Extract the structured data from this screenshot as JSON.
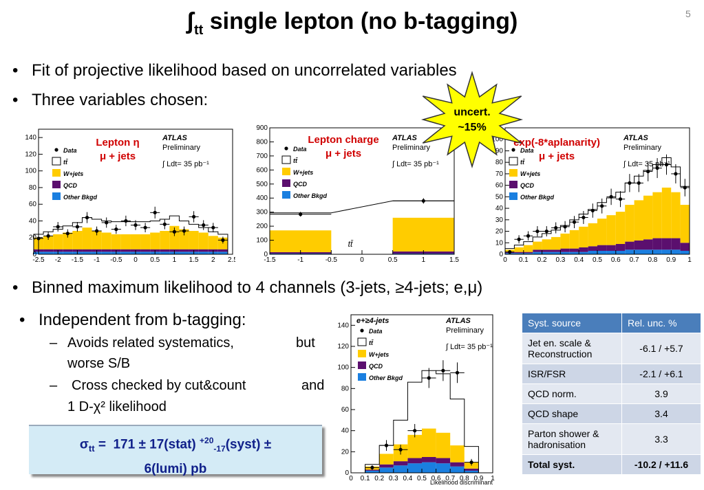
{
  "title": {
    "glyph": "ʃ",
    "sub": "tt",
    "text": "single lepton (no b-tagging)"
  },
  "page_number": "5",
  "bullets": [
    "Fit of projective likelihood based on uncorrelated variables",
    "Three variables chosen:",
    "Binned maximum likelihood to 4 channels (3-jets, ≥4-jets; e,μ)",
    "Independent from b-tagging:"
  ],
  "sub_bullets": [
    {
      "a": "Avoids related systematics,",
      "b": "but",
      "c": "worse S/B"
    },
    {
      "a": "Cross checked by cut&count",
      "b": "and",
      "c": "1 D-χ² likelihood"
    }
  ],
  "starburst": {
    "line1": "uncert.",
    "line2": "~15%",
    "color": "#ffff00"
  },
  "result": {
    "line1": "σtt =  171 ± 17(stat) +20-17(syst) ±",
    "line2": "6(lumi) pb"
  },
  "legend": {
    "data": "Data",
    "tt": "tt̄",
    "wjets": "W+jets",
    "qcd": "QCD",
    "other": "Other Bkgd"
  },
  "atlas": {
    "name": "ATLAS",
    "prelim": "Preliminary",
    "lumi": "∫ Ldt= 35 pb⁻¹"
  },
  "colors": {
    "tt": "#ffffff",
    "wjets": "#ffcc00",
    "qcd": "#5b0f6e",
    "other": "#1a7fe0",
    "title": "#10208a",
    "red": "#d00000"
  },
  "plots": {
    "eta": {
      "label1": "Lepton η",
      "label2": "μ + jets"
    },
    "charge": {
      "label1": "Lepton charge",
      "label2": "μ + jets",
      "inner": "tt̄"
    },
    "aplan": {
      "label1": "exp(-8*aplanarity)",
      "label2": "μ + jets"
    },
    "lhd": {
      "channel": "e+≥4-jets",
      "xlabel": "Likelihood discriminant"
    }
  },
  "table": {
    "headers": [
      "Syst. source",
      "Rel. unc. %"
    ],
    "rows": [
      [
        "Jet en. scale & Reconstruction",
        "-6.1 / +5.7"
      ],
      [
        "ISR/FSR",
        "-2.1 / +6.1"
      ],
      [
        "QCD norm.",
        "3.9"
      ],
      [
        "QCD shape",
        "3.4"
      ],
      [
        "Parton shower & hadronisation",
        "3.3"
      ],
      [
        "Total syst.",
        "-10.2 / +11.6"
      ]
    ]
  },
  "chart_data": [
    {
      "type": "bar",
      "title": "",
      "xlabel": "",
      "ylabel": "",
      "x_ticks": [
        "-2.5",
        "-2",
        "-1.5",
        "-1",
        "-0.5",
        "0",
        "0.5",
        "1",
        "1.5",
        "2",
        "2.5"
      ],
      "y_ticks": [
        "0",
        "20",
        "40",
        "60",
        "80",
        "100",
        "120",
        "140"
      ],
      "ylim": [
        0,
        150
      ],
      "xlim": [
        -2.5,
        2.5
      ],
      "categories": [
        "-2.5",
        "-2.25",
        "-2",
        "-1.75",
        "-1.5",
        "-1.25",
        "-1",
        "-0.75",
        "-0.5",
        "-0.25",
        "0",
        "0.25",
        "0.5",
        "0.75",
        "1",
        "1.25",
        "1.5",
        "1.75",
        "2",
        "2.25"
      ],
      "series": [
        {
          "name": "Other Bkgd",
          "values": [
            3,
            3,
            3,
            3,
            3,
            3,
            3,
            3,
            3,
            3,
            3,
            3,
            3,
            3,
            3,
            3,
            3,
            3,
            3,
            3
          ]
        },
        {
          "name": "QCD",
          "values": [
            3,
            3,
            3,
            3,
            3,
            3,
            3,
            3,
            3,
            3,
            3,
            3,
            3,
            3,
            3,
            3,
            3,
            3,
            3,
            3
          ]
        },
        {
          "name": "W+jets",
          "values": [
            14,
            16,
            18,
            20,
            22,
            26,
            22,
            20,
            18,
            18,
            18,
            18,
            20,
            22,
            28,
            24,
            22,
            20,
            16,
            14
          ]
        },
        {
          "name": "tt̄",
          "values": [
            4,
            5,
            6,
            8,
            10,
            12,
            14,
            14,
            15,
            15,
            15,
            15,
            14,
            14,
            12,
            10,
            8,
            6,
            5,
            4
          ]
        },
        {
          "name": "Data",
          "values": [
            19,
            22,
            33,
            25,
            33,
            44,
            28,
            38,
            30,
            40,
            35,
            32,
            50,
            36,
            27,
            28,
            45,
            35,
            32,
            17
          ]
        }
      ]
    },
    {
      "type": "bar",
      "title": "",
      "xlabel": "",
      "ylabel": "",
      "x_ticks": [
        "-1.5",
        "-1",
        "-0.5",
        "0",
        "0.5",
        "1",
        "1.5"
      ],
      "y_ticks": [
        "0",
        "100",
        "200",
        "300",
        "400",
        "500",
        "600",
        "700",
        "800",
        "900"
      ],
      "ylim": [
        0,
        900
      ],
      "xlim": [
        -1.5,
        1.5
      ],
      "categories": [
        "-1",
        "1"
      ],
      "series": [
        {
          "name": "Other Bkgd",
          "values": [
            5,
            5
          ]
        },
        {
          "name": "QCD",
          "values": [
            10,
            15
          ]
        },
        {
          "name": "W+jets",
          "values": [
            155,
            240
          ]
        },
        {
          "name": "tt̄",
          "values": [
            125,
            120
          ]
        },
        {
          "name": "Data",
          "values": [
            285,
            380
          ]
        }
      ]
    },
    {
      "type": "bar",
      "title": "",
      "xlabel": "",
      "ylabel": "",
      "x_ticks": [
        "0",
        "0.1",
        "0.2",
        "0.3",
        "0.4",
        "0.5",
        "0.6",
        "0.7",
        "0.8",
        "0.9",
        "1"
      ],
      "y_ticks": [
        "0",
        "10",
        "20",
        "30",
        "40",
        "50",
        "60",
        "70",
        "80",
        "90",
        "100"
      ],
      "ylim": [
        0,
        110
      ],
      "xlim": [
        0,
        1
      ],
      "categories": [
        "0.025",
        "0.075",
        "0.125",
        "0.175",
        "0.225",
        "0.275",
        "0.325",
        "0.375",
        "0.425",
        "0.475",
        "0.525",
        "0.575",
        "0.625",
        "0.675",
        "0.725",
        "0.775",
        "0.825",
        "0.875",
        "0.925",
        "0.975"
      ],
      "series": [
        {
          "name": "Other Bkgd",
          "values": [
            1,
            1,
            1,
            2,
            2,
            2,
            2,
            2,
            2,
            3,
            3,
            3,
            3,
            4,
            4,
            4,
            4,
            4,
            4,
            3
          ]
        },
        {
          "name": "QCD",
          "values": [
            1,
            1,
            1,
            2,
            2,
            2,
            3,
            3,
            4,
            4,
            5,
            5,
            6,
            7,
            8,
            9,
            10,
            10,
            10,
            7
          ]
        },
        {
          "name": "W+jets",
          "values": [
            2,
            4,
            6,
            7,
            9,
            11,
            13,
            16,
            18,
            20,
            23,
            26,
            28,
            32,
            35,
            38,
            40,
            44,
            40,
            33
          ]
        },
        {
          "name": "tt̄",
          "values": [
            1,
            2,
            3,
            4,
            5,
            6,
            7,
            9,
            11,
            12,
            14,
            15,
            17,
            19,
            21,
            22,
            24,
            26,
            22,
            16
          ]
        },
        {
          "name": "Data",
          "values": [
            2,
            13,
            16,
            20,
            20,
            23,
            24,
            28,
            32,
            38,
            42,
            50,
            48,
            62,
            62,
            72,
            75,
            78,
            70,
            58
          ]
        }
      ]
    },
    {
      "type": "bar",
      "title": "",
      "xlabel": "Likelihood discriminant",
      "ylabel": "",
      "x_ticks": [
        "0",
        "0.1",
        "0.2",
        "0.3",
        "0.4",
        "0.5",
        "0.6",
        "0.7",
        "0.8",
        "0.9",
        "1"
      ],
      "y_ticks": [
        "0",
        "20",
        "40",
        "60",
        "80",
        "100",
        "120",
        "140"
      ],
      "ylim": [
        0,
        150
      ],
      "xlim": [
        0,
        1
      ],
      "categories": [
        "0.15",
        "0.25",
        "0.35",
        "0.45",
        "0.55",
        "0.65",
        "0.75",
        "0.85"
      ],
      "series": [
        {
          "name": "Other Bkgd",
          "values": [
            2,
            5,
            7,
            9,
            10,
            9,
            6,
            2
          ]
        },
        {
          "name": "QCD",
          "values": [
            1,
            3,
            4,
            5,
            5,
            5,
            4,
            2
          ]
        },
        {
          "name": "W+jets",
          "values": [
            3,
            10,
            16,
            22,
            27,
            24,
            16,
            6
          ]
        },
        {
          "name": "tt̄",
          "values": [
            2,
            8,
            23,
            50,
            55,
            56,
            44,
            15
          ]
        },
        {
          "name": "Data",
          "values": [
            5,
            26,
            22,
            40,
            90,
            97,
            95,
            10
          ]
        }
      ]
    }
  ]
}
